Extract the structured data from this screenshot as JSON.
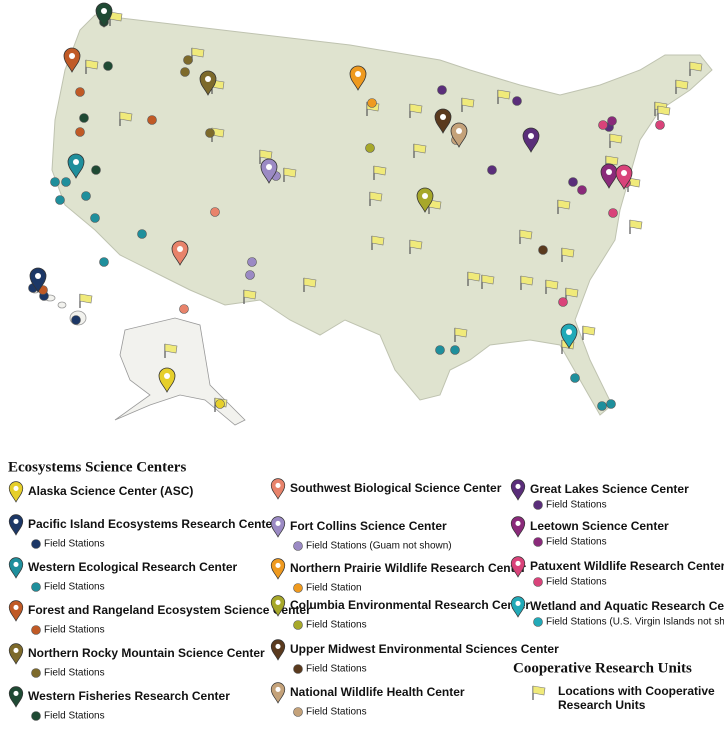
{
  "legend": {
    "title": "Ecosystems Science Centers",
    "centers": [
      {
        "name": "Alaska Science Center (ASC)",
        "color": "#e6cf2b"
      },
      {
        "name": "Pacific Island Ecosystems Research Center",
        "color": "#1c3766",
        "stations": "Field Stations"
      },
      {
        "name": "Western Ecological Research Center",
        "color": "#1f8f9c",
        "stations": "Field Stations"
      },
      {
        "name": "Forest and Rangeland Ecosystem Science Center",
        "color": "#c05a26",
        "stations": "Field Stations"
      },
      {
        "name": "Northern Rocky Mountain Science Center",
        "color": "#7d6a2b",
        "stations": "Field Stations"
      },
      {
        "name": "Western Fisheries Research Center",
        "color": "#1f4a34",
        "stations": "Field Stations"
      },
      {
        "name": "Southwest Biological Science Center",
        "color": "#e8836b"
      },
      {
        "name": "Fort Collins Science Center",
        "color": "#9b8ac4",
        "stations": "Field Stations (Guam not shown)"
      },
      {
        "name": "Northern Prairie Wildlife Research Center",
        "color": "#ef9a1f",
        "stations": "Field Station"
      },
      {
        "name": "Columbia Environmental Research Center",
        "color": "#a7a82a",
        "stations": "Field Stations"
      },
      {
        "name": "Upper Midwest Environmental Sciences Center",
        "color": "#5a3a1e",
        "stations": "Field Stations"
      },
      {
        "name": "National Wildlife Health Center",
        "color": "#c4a27a",
        "stations": "Field Stations"
      },
      {
        "name": "Great Lakes Science Center",
        "color": "#5a2e7a",
        "stations": "Field Stations"
      },
      {
        "name": "Leetown Science Center",
        "color": "#8a2a7a",
        "stations": "Field Stations"
      },
      {
        "name": "Patuxent Wildlife Research Center",
        "color": "#d9437a",
        "stations": "Field Stations"
      },
      {
        "name": "Wetland and Aquatic Research Center",
        "color": "#22aab8",
        "stations": "Field Stations (U.S. Virgin Islands not shown)"
      }
    ],
    "coop_title": "Cooperative Research Units",
    "coop_label": [
      "Locations with Cooperative",
      "Research Units"
    ]
  }
}
